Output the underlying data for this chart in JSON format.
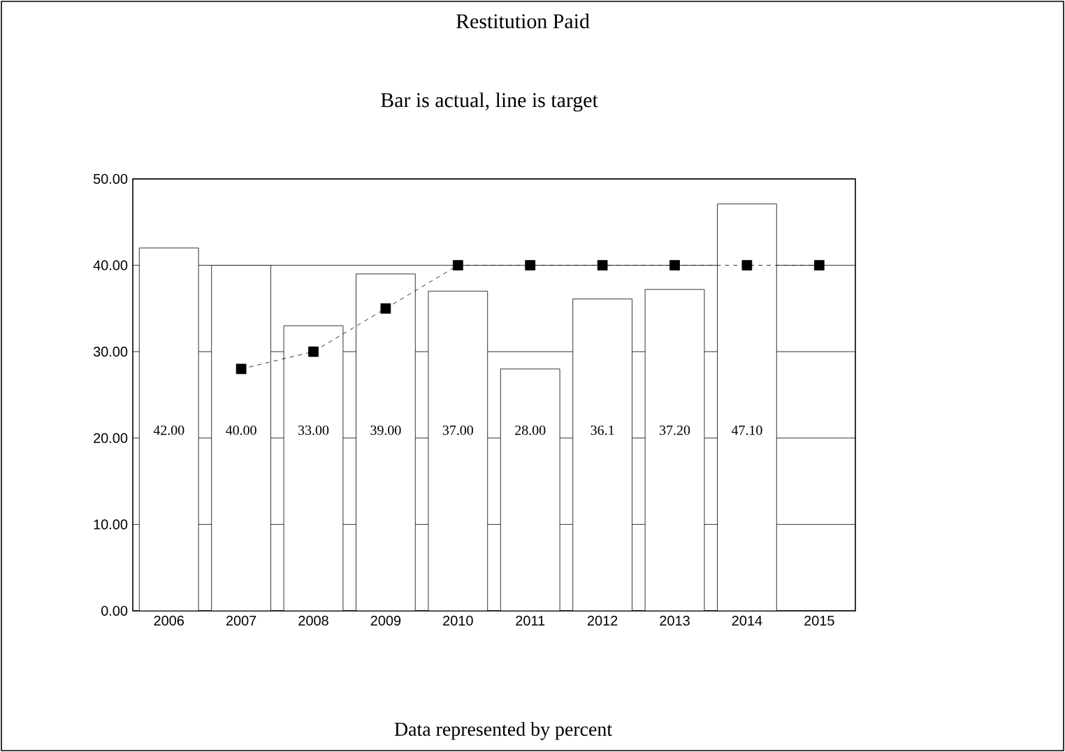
{
  "chart_data": {
    "type": "bar",
    "title": "Restitution Paid",
    "subtitle": "Bar is actual, line is target",
    "categories": [
      "2006",
      "2007",
      "2008",
      "2009",
      "2010",
      "2011",
      "2012",
      "2013",
      "2014",
      "2015"
    ],
    "series": [
      {
        "color": "#ffffff",
        "values": [
          42,
          40,
          33,
          39,
          37,
          28,
          36.1,
          37.2,
          47.1,
          null
        ],
        "value_labels": [
          "42.00",
          "40.00",
          "33.00",
          "39.00",
          "37.00",
          "28.00",
          "36.1",
          "37.20",
          "47.10",
          null
        ]
      },
      {
        "type": "line",
        "color": "#000000",
        "marker": "square",
        "line_style": "dashed",
        "values": [
          null,
          28,
          30,
          35,
          40,
          40,
          40,
          40,
          40,
          40
        ]
      }
    ],
    "ylim": [
      0,
      50
    ],
    "yticks": [
      {
        "value": 0,
        "label": "0.00"
      },
      {
        "value": 10,
        "label": "10.00"
      },
      {
        "value": 20,
        "label": "20.00"
      },
      {
        "value": 30,
        "label": "30.00"
      },
      {
        "value": 40,
        "label": "40.00"
      },
      {
        "value": 50,
        "label": "50.00"
      }
    ],
    "grid": "y",
    "annotations": [
      "Data represented by percent"
    ]
  }
}
